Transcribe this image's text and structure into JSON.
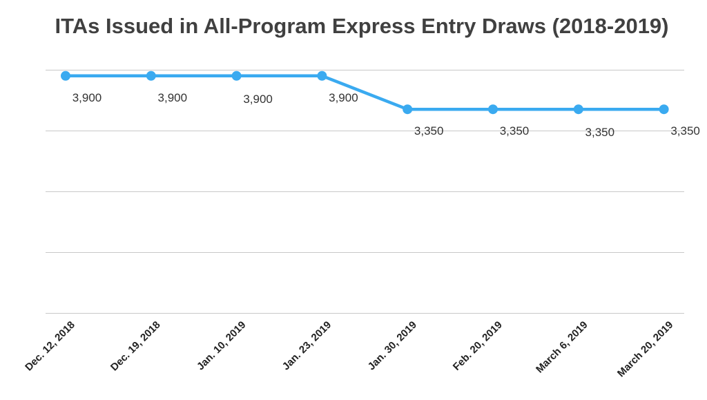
{
  "chart_data": {
    "type": "line",
    "title": "ITAs Issued in All-Program Express Entry Draws (2018-2019)",
    "xlabel": "",
    "ylabel": "",
    "categories": [
      "Dec. 12, 2018",
      "Dec. 19, 2018",
      "Jan. 10, 2019",
      "Jan. 23, 2019",
      "Jan. 30, 2019",
      "Feb. 20, 2019",
      "March 6, 2019",
      "March 20, 2019"
    ],
    "series": [
      {
        "values": [
          3900,
          3900,
          3900,
          3900,
          3350,
          3350,
          3350,
          3350
        ],
        "labels": [
          "3,900",
          "3,900",
          "3,900",
          "3,900",
          "3,350",
          "3,350",
          "3,350",
          "3,350"
        ],
        "color": "#3aaaf0"
      }
    ],
    "ylim": [
      0,
      4000
    ],
    "grid": true,
    "legend": "none"
  }
}
